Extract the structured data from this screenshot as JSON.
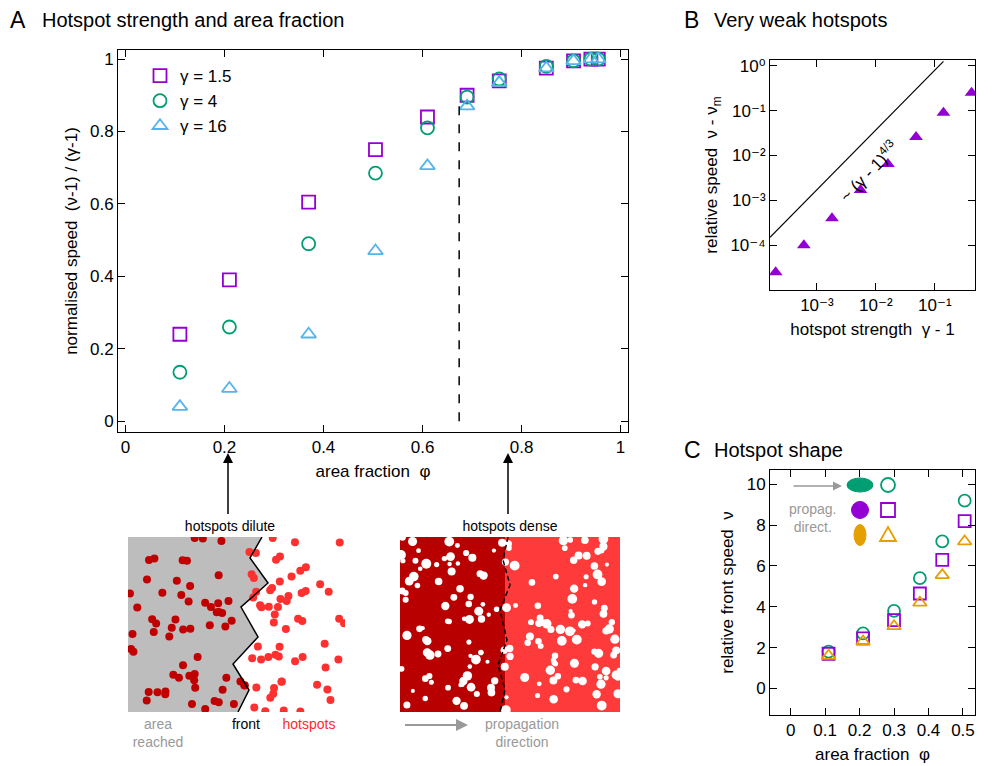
{
  "chart_data": [
    {
      "panel": "A",
      "title": "Hotspot strength and area fraction",
      "type": "scatter",
      "x_label": "area fraction  φ",
      "y_label": "normalised speed  (ν-1) / (γ-1)",
      "xlim": [
        -0.015,
        1.015
      ],
      "ylim": [
        -0.03,
        1.025
      ],
      "xticks": [
        0,
        0.2,
        0.4,
        0.6,
        0.8,
        1
      ],
      "yticks": [
        0,
        0.2,
        0.4,
        0.6,
        0.8,
        1
      ],
      "legend": "upper left",
      "dashed_line": {
        "x": 0.674,
        "y": [
          0,
          0.875
        ]
      },
      "series": [
        {
          "name": "γ = 1.5",
          "color": "#9400D3",
          "marker": "square-open",
          "x": [
            0.11,
            0.21,
            0.37,
            0.505,
            0.61,
            0.69,
            0.755,
            0.85,
            0.905,
            0.94,
            0.955
          ],
          "values": [
            0.24,
            0.39,
            0.605,
            0.75,
            0.84,
            0.9,
            0.94,
            0.975,
            0.995,
            1.0,
            1.0
          ]
        },
        {
          "name": "γ = 4",
          "color": "#009E73",
          "marker": "circle-open",
          "x": [
            0.11,
            0.21,
            0.37,
            0.505,
            0.61,
            0.69,
            0.755,
            0.85,
            0.905,
            0.94,
            0.955
          ],
          "values": [
            0.135,
            0.26,
            0.49,
            0.685,
            0.81,
            0.895,
            0.945,
            0.98,
            0.995,
            1.0,
            1.0
          ]
        },
        {
          "name": "γ = 16",
          "color": "#56B4E9",
          "marker": "triangle-up-open",
          "x": [
            0.11,
            0.21,
            0.37,
            0.505,
            0.61,
            0.69,
            0.755,
            0.85,
            0.905,
            0.94,
            0.955
          ],
          "values": [
            0.04,
            0.09,
            0.24,
            0.47,
            0.705,
            0.87,
            0.935,
            0.975,
            0.995,
            1.0,
            1.0
          ]
        }
      ]
    },
    {
      "panel": "B",
      "title": "Very weak hotspots",
      "type": "scatter",
      "log": true,
      "x_label": "hotspot strength  γ - 1",
      "y_label": {
        "text": "relative speed  ν - ν",
        "subscript": "m"
      },
      "xlim": [
        0.00016,
        0.48
      ],
      "ylim": [
        1e-05,
        1.35
      ],
      "xticks": [
        {
          "value": 0.001,
          "label": "10⁻³"
        },
        {
          "value": 0.01,
          "label": "10⁻²"
        },
        {
          "value": 0.1,
          "label": "10⁻¹"
        }
      ],
      "yticks": [
        {
          "value": 0.0001,
          "label": "10⁻⁴"
        },
        {
          "value": 0.001,
          "label": "10⁻³"
        },
        {
          "value": 0.01,
          "label": "10⁻²"
        },
        {
          "value": 0.1,
          "label": "10⁻¹"
        },
        {
          "value": 1,
          "label": "10⁰"
        }
      ],
      "series": [
        {
          "type": "scatter",
          "color": "#9400D3",
          "marker": "triangle-up",
          "x": [
            0.0002,
            0.0006,
            0.0018,
            0.0055,
            0.016,
            0.048,
            0.14,
            0.42
          ],
          "values": [
            2.5e-05,
            0.0001,
            0.0004,
            0.0017,
            0.0065,
            0.026,
            0.09,
            0.25
          ]
        },
        {
          "type": "line",
          "color": "#000000",
          "line_style": "solid",
          "x": [
            0.00016,
            0.14
          ],
          "values": [
            0.00015,
            1.26
          ],
          "label": {
            "text": "~ (γ - 1)",
            "exponent": "4/3"
          }
        }
      ]
    },
    {
      "panel": "C",
      "title": "Hotspot shape",
      "type": "scatter",
      "x_label": "area fraction  φ",
      "y_label": "relative front speed  ν",
      "xlim": [
        -0.06,
        0.535
      ],
      "ylim": [
        -1.3,
        10.7
      ],
      "xticks": [
        0,
        0.1,
        0.2,
        0.3,
        0.4,
        0.5
      ],
      "yticks": [
        0,
        2,
        4,
        6,
        8,
        10
      ],
      "legend_note": "propag. direct.",
      "series": [
        {
          "color": "#009E73",
          "marker": "circle-open",
          "x": [
            0.11,
            0.21,
            0.3,
            0.375,
            0.44,
            0.505
          ],
          "values": [
            1.8,
            2.7,
            3.8,
            5.4,
            7.2,
            9.2
          ]
        },
        {
          "color": "#9400D3",
          "marker": "square-open",
          "x": [
            0.11,
            0.21,
            0.3,
            0.375,
            0.44,
            0.505
          ],
          "values": [
            1.7,
            2.45,
            3.35,
            4.65,
            6.3,
            8.2
          ]
        },
        {
          "color": "#E69F00",
          "marker": "triangle-up-open",
          "x": [
            0.11,
            0.21,
            0.3,
            0.375,
            0.44,
            0.505
          ],
          "values": [
            1.6,
            2.3,
            3.05,
            4.2,
            5.55,
            7.2
          ]
        }
      ]
    }
  ],
  "illustrations": [
    {
      "arrow_label": "hotspots dilute",
      "labels": [
        {
          "text": "area reached",
          "color": "#999999"
        },
        {
          "text": "front",
          "color": "#000000"
        },
        {
          "text": "hotspots",
          "color": "#ff2a2a"
        }
      ]
    },
    {
      "arrow_label": "hotspots dense",
      "labels": [
        {
          "text": "propagation direction",
          "color": "#999999"
        }
      ]
    }
  ]
}
